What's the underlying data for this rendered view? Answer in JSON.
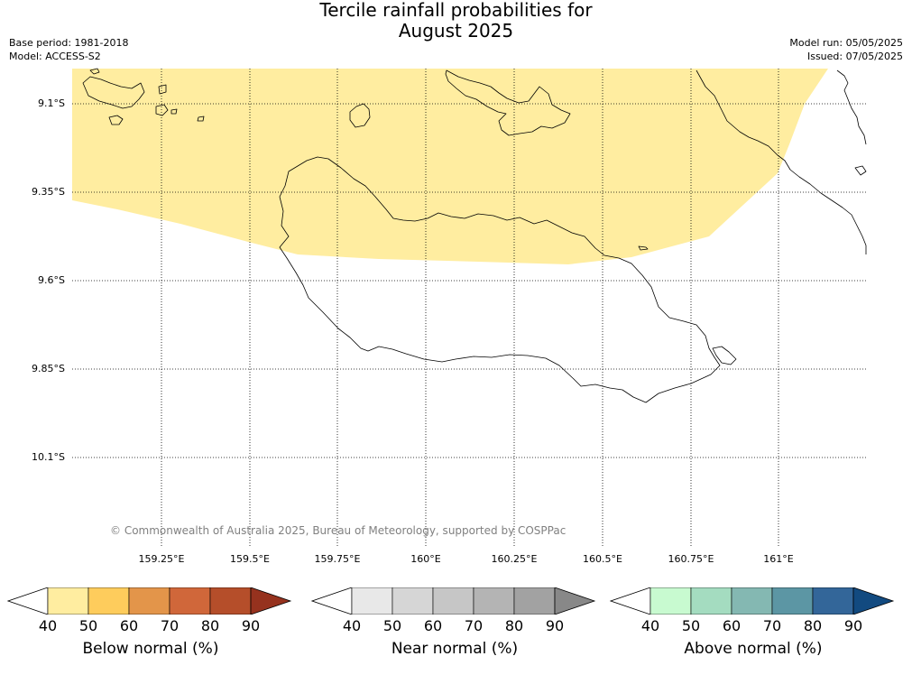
{
  "title": {
    "line1": "Tercile rainfall probabilities for",
    "line2": "August 2025"
  },
  "meta": {
    "base_period": "Base period: 1981-2018",
    "model": "Model: ACCESS-S2",
    "model_run": "Model run: 05/05/2025",
    "issued": "Issued: 07/05/2025"
  },
  "map": {
    "lat_labels": [
      "9.1°S",
      "9.35°S",
      "9.6°S",
      "9.85°S",
      "10.1°S"
    ],
    "lon_labels": [
      "159.25°E",
      "159.5°E",
      "159.75°E",
      "160°E",
      "160.25°E",
      "160.5°E",
      "160.75°E",
      "161°E"
    ],
    "copyright": "© Commonwealth of Australia 2025, Bureau of Meteorology, supported by COSPPac",
    "shaded_region": {
      "category": "Below normal",
      "probability_bin": "40-50",
      "color": "#ffeda0"
    },
    "colors": {
      "coast": "#000000",
      "grid": "#000000"
    }
  },
  "colorbars": [
    {
      "title": "Below normal (%)",
      "ticks": [
        "40",
        "50",
        "60",
        "70",
        "80",
        "90"
      ],
      "colors": [
        "#ffffff",
        "#ffeda0",
        "#fecc5c",
        "#e3954a",
        "#d0673a",
        "#b54e2a",
        "#96321e"
      ]
    },
    {
      "title": "Near normal (%)",
      "ticks": [
        "40",
        "50",
        "60",
        "70",
        "80",
        "90"
      ],
      "colors": [
        "#ffffff",
        "#e8e8e8",
        "#d6d6d6",
        "#c6c6c6",
        "#b4b4b4",
        "#a2a2a2",
        "#888888"
      ]
    },
    {
      "title": "Above normal (%)",
      "ticks": [
        "40",
        "50",
        "60",
        "70",
        "80",
        "90"
      ],
      "colors": [
        "#ffffff",
        "#c8fad0",
        "#a4dcc0",
        "#84b8b2",
        "#5c96a4",
        "#336699",
        "#124a80"
      ]
    }
  ]
}
